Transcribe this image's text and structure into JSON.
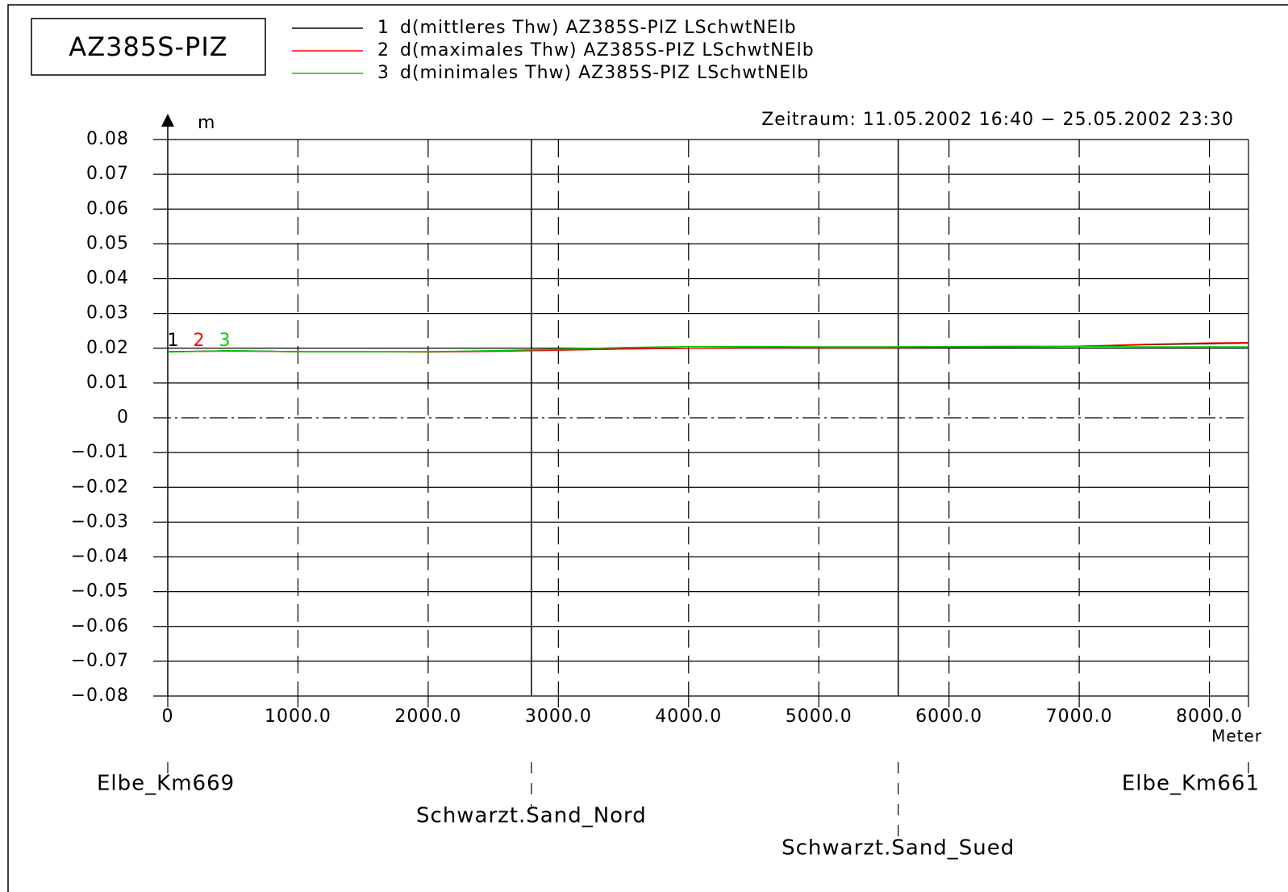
{
  "chart_data": {
    "type": "line",
    "title": "AZ385S-PIZ",
    "subtitle": "Zeitraum: 11.05.2002 16:40 − 25.05.2002 23:30",
    "y_label": "m",
    "x_label": "Meter",
    "x": [
      0,
      500,
      1000,
      1500,
      2000,
      2500,
      3000,
      3500,
      4000,
      4500,
      5000,
      5500,
      6000,
      6500,
      7000,
      7500,
      8000,
      8300
    ],
    "series": [
      {
        "label": "1",
        "name": "d(mittleres Thw) AZ385S-PIZ LSchwtNElb",
        "color": "#000000",
        "values": [
          0.019,
          0.0193,
          0.019,
          0.019,
          0.019,
          0.0192,
          0.0195,
          0.0198,
          0.02,
          0.0201,
          0.0201,
          0.0201,
          0.0203,
          0.0204,
          0.0205,
          0.021,
          0.0213,
          0.0215
        ]
      },
      {
        "label": "2",
        "name": "d(maximales Thw) AZ385S-PIZ LSchwtNElb",
        "color": "#ff0000",
        "values": [
          0.019,
          0.0192,
          0.019,
          0.019,
          0.0189,
          0.0191,
          0.0194,
          0.0198,
          0.02,
          0.0201,
          0.0201,
          0.0201,
          0.0203,
          0.0204,
          0.0206,
          0.0211,
          0.0215,
          0.0216
        ]
      },
      {
        "label": "3",
        "name": "d(minimales Thw) AZ385S-PIZ LSchwtNElb",
        "color": "#00cc00",
        "values": [
          0.0189,
          0.0193,
          0.019,
          0.019,
          0.019,
          0.0193,
          0.0197,
          0.0202,
          0.0205,
          0.0205,
          0.0204,
          0.0204,
          0.0205,
          0.0206,
          0.0205,
          0.0204,
          0.0204,
          0.0204
        ]
      }
    ],
    "xlim": [
      0,
      8300
    ],
    "ylim": [
      -0.08,
      0.08
    ],
    "xticks": [
      0,
      {
        "value": 1000,
        "label": "1000.0"
      },
      {
        "value": 2000,
        "label": "2000.0"
      },
      {
        "value": 3000,
        "label": "3000.0"
      },
      {
        "value": 4000,
        "label": "4000.0"
      },
      {
        "value": 5000,
        "label": "5000.0"
      },
      {
        "value": 6000,
        "label": "6000.0"
      },
      {
        "value": 7000,
        "label": "7000.0"
      },
      {
        "value": 8000,
        "label": "8000.0"
      }
    ],
    "yticks": [
      {
        "value": -0.08,
        "label": "−0.08"
      },
      {
        "value": -0.07,
        "label": "−0.07"
      },
      {
        "value": -0.06,
        "label": "−0.06"
      },
      {
        "value": -0.05,
        "label": "−0.05"
      },
      {
        "value": -0.04,
        "label": "−0.04"
      },
      {
        "value": -0.03,
        "label": "−0.03"
      },
      {
        "value": -0.02,
        "label": "−0.02"
      },
      {
        "value": -0.01,
        "label": "−0.01"
      },
      0,
      0.01,
      0.02,
      0.03,
      0.04,
      0.05,
      0.06,
      0.07,
      0.08
    ],
    "grid": true,
    "stations": [
      {
        "name": "Elbe_Km669",
        "x": 0
      },
      {
        "name": "Schwarzt.Sand_Nord",
        "x": 2793
      },
      {
        "name": "Schwarzt.Sand_Sued",
        "x": 5610
      },
      {
        "name": "Elbe_Km661",
        "x": 8300
      }
    ]
  }
}
